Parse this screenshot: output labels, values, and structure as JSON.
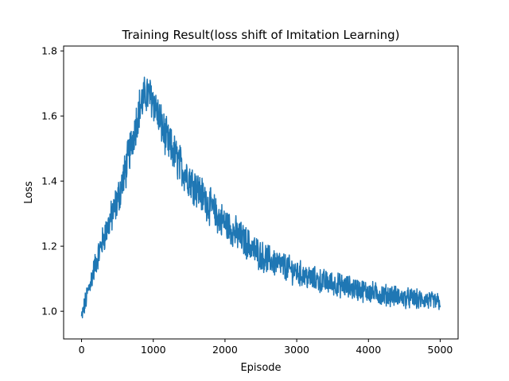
{
  "chart_data": {
    "type": "line",
    "title": "Training Result(loss shift of Imitation Learning)",
    "xlabel": "Episode",
    "ylabel": "Loss",
    "xlim": [
      -250,
      5250
    ],
    "ylim": [
      0.915,
      1.815
    ],
    "xticks": [
      0,
      1000,
      2000,
      3000,
      4000,
      5000
    ],
    "yticks": [
      1.0,
      1.2,
      1.4,
      1.6,
      1.8
    ],
    "xtick_labels": [
      "0",
      "1000",
      "2000",
      "3000",
      "4000",
      "5000"
    ],
    "ytick_labels": [
      "1.0",
      "1.2",
      "1.4",
      "1.6",
      "1.8"
    ],
    "grid": false,
    "series": [
      {
        "color": "#1f77b4",
        "x": [
          0,
          100,
          200,
          300,
          400,
          500,
          600,
          700,
          800,
          900,
          1000,
          1100,
          1200,
          1300,
          1400,
          1500,
          1600,
          1700,
          1800,
          1900,
          2000,
          2100,
          2200,
          2300,
          2400,
          2500,
          2600,
          2700,
          2800,
          2900,
          3000,
          3100,
          3200,
          3300,
          3400,
          3500,
          3600,
          3700,
          3800,
          3900,
          4000,
          4100,
          4200,
          4300,
          4400,
          4500,
          4600,
          4700,
          4800,
          4900,
          5000
        ],
        "y": [
          0.98,
          1.07,
          1.15,
          1.22,
          1.28,
          1.34,
          1.42,
          1.52,
          1.62,
          1.67,
          1.65,
          1.58,
          1.52,
          1.48,
          1.44,
          1.41,
          1.38,
          1.35,
          1.32,
          1.29,
          1.27,
          1.25,
          1.23,
          1.21,
          1.19,
          1.17,
          1.16,
          1.15,
          1.14,
          1.13,
          1.12,
          1.11,
          1.1,
          1.095,
          1.09,
          1.085,
          1.08,
          1.075,
          1.07,
          1.065,
          1.06,
          1.055,
          1.05,
          1.05,
          1.045,
          1.04,
          1.04,
          1.035,
          1.035,
          1.03,
          1.03
        ]
      }
    ]
  }
}
